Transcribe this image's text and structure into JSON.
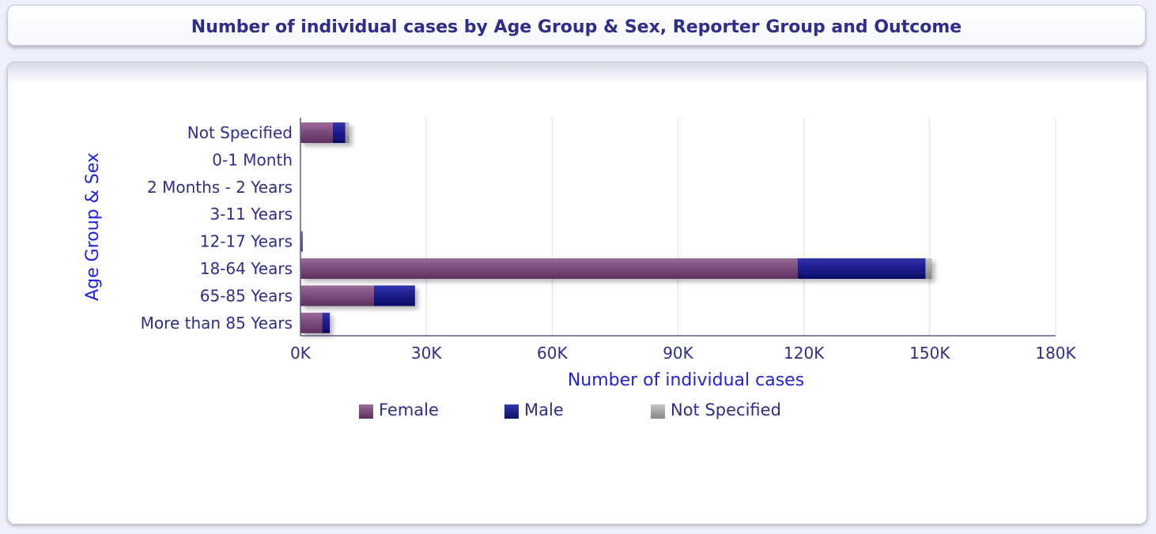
{
  "title": "Number of individual cases by Age Group & Sex, Reporter Group and Outcome",
  "colors": {
    "Female": "#7e4c7e",
    "Male": "#1d1d8f",
    "Not Specified": "#a6a6a6",
    "axis_title": "#2222dd",
    "tick_text": "#2e2e8a"
  },
  "chart_data": {
    "type": "bar",
    "orientation": "horizontal",
    "stacked": true,
    "title": "",
    "xlabel": "Number of individual cases",
    "ylabel": "Age Group & Sex",
    "xlim": [
      0,
      180000
    ],
    "xticks": [
      0,
      30000,
      60000,
      90000,
      120000,
      150000,
      180000
    ],
    "xtick_labels": [
      "0K",
      "30K",
      "60K",
      "90K",
      "120K",
      "150K",
      "180K"
    ],
    "categories": [
      "Not Specified",
      "0-1 Month",
      "2 Months - 2 Years",
      "3-11 Years",
      "12-17 Years",
      "18-64 Years",
      "65-85 Years",
      "More than 85 Years"
    ],
    "series": [
      {
        "name": "Female",
        "values": [
          7700,
          0,
          0,
          0,
          300,
          118500,
          17500,
          5200
        ]
      },
      {
        "name": "Male",
        "values": [
          3000,
          0,
          0,
          0,
          100,
          30500,
          9800,
          1800
        ]
      },
      {
        "name": "Not Specified",
        "values": [
          900,
          0,
          0,
          0,
          0,
          1500,
          0,
          0
        ]
      }
    ],
    "grid": {
      "x": true,
      "y": false
    },
    "legend_position": "bottom"
  }
}
